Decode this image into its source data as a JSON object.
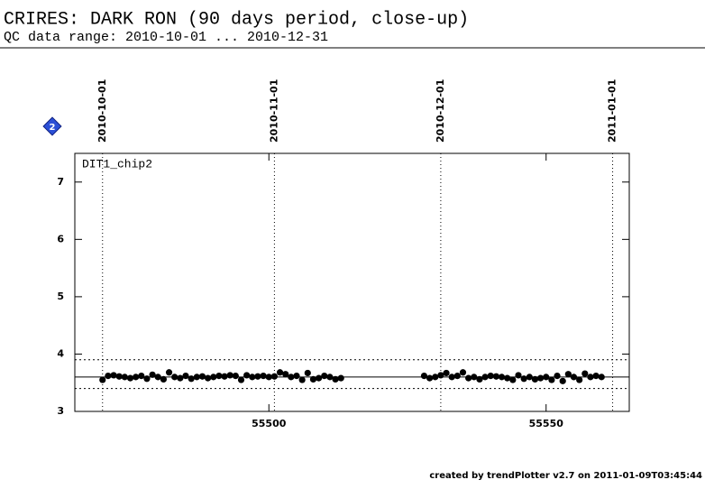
{
  "chart_data": {
    "type": "scatter",
    "title": "CRIRES: DARK RON (90 days period, close-up)",
    "subtitle": "QC data range: 2010-10-01 ... 2010-12-31",
    "panel_label": "DIT1_chip2",
    "icon_label": "2",
    "footer": "created by trendPlotter v2.7 on 2011-01-09T03:45:44",
    "color": "#000000",
    "xlim": [
      55465,
      55565
    ],
    "ylim": [
      3,
      7.5
    ],
    "xticks": [
      55500,
      55550
    ],
    "yticks": [
      3,
      4,
      5,
      6,
      7
    ],
    "date_lines": [
      {
        "value": 55470,
        "label": "2010-10-01"
      },
      {
        "value": 55501,
        "label": "2010-11-01"
      },
      {
        "value": 55531,
        "label": "2010-12-01"
      },
      {
        "value": 55562,
        "label": "2011-01-01"
      }
    ],
    "reference_lines": [
      {
        "value": 3.6,
        "style": "solid"
      },
      {
        "value": 3.9,
        "style": "dotted"
      },
      {
        "value": 3.4,
        "style": "dotted"
      }
    ],
    "x": [
      55470,
      55471,
      55472,
      55473,
      55474,
      55475,
      55476,
      55477,
      55478,
      55479,
      55480,
      55481,
      55482,
      55483,
      55484,
      55485,
      55486,
      55487,
      55488,
      55489,
      55490,
      55491,
      55492,
      55493,
      55494,
      55495,
      55496,
      55497,
      55498,
      55499,
      55500,
      55501,
      55502,
      55503,
      55504,
      55505,
      55506,
      55507,
      55508,
      55509,
      55510,
      55511,
      55512,
      55513,
      55528,
      55529,
      55530,
      55531,
      55532,
      55533,
      55534,
      55535,
      55536,
      55537,
      55538,
      55539,
      55540,
      55541,
      55542,
      55543,
      55544,
      55545,
      55546,
      55547,
      55548,
      55549,
      55550,
      55551,
      55552,
      55553,
      55554,
      55555,
      55556,
      55557,
      55558,
      55559,
      55560
    ],
    "values": [
      3.55,
      3.62,
      3.63,
      3.61,
      3.6,
      3.58,
      3.6,
      3.62,
      3.57,
      3.64,
      3.6,
      3.56,
      3.68,
      3.6,
      3.58,
      3.62,
      3.57,
      3.6,
      3.61,
      3.58,
      3.6,
      3.62,
      3.61,
      3.63,
      3.62,
      3.55,
      3.63,
      3.6,
      3.61,
      3.62,
      3.6,
      3.61,
      3.68,
      3.65,
      3.6,
      3.62,
      3.55,
      3.67,
      3.56,
      3.58,
      3.62,
      3.6,
      3.56,
      3.58,
      3.62,
      3.58,
      3.6,
      3.63,
      3.67,
      3.6,
      3.62,
      3.68,
      3.58,
      3.6,
      3.56,
      3.6,
      3.62,
      3.61,
      3.6,
      3.58,
      3.55,
      3.63,
      3.57,
      3.6,
      3.56,
      3.58,
      3.6,
      3.55,
      3.62,
      3.53,
      3.65,
      3.6,
      3.55,
      3.66,
      3.6,
      3.62,
      3.6
    ]
  }
}
